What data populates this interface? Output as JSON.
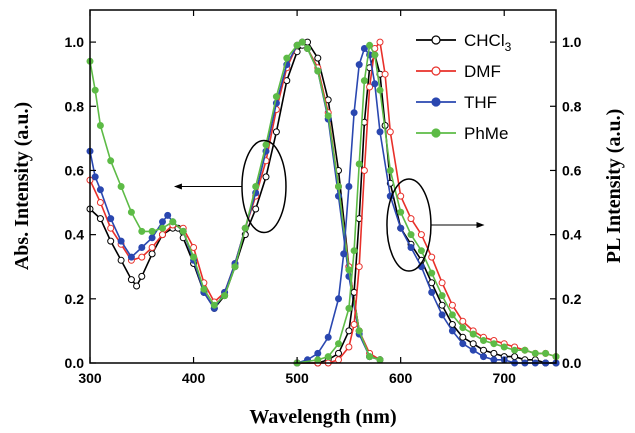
{
  "chart_data": {
    "type": "line",
    "xlabel": "Wavelength (nm)",
    "ylabel_left": "Abs. Intensity (a.u.)",
    "ylabel_right": "PL Intensity (a.u.)",
    "xlim": [
      300,
      750
    ],
    "ylim_left": [
      0.0,
      1.1
    ],
    "ylim_right": [
      0.0,
      1.1
    ],
    "x_ticks": [
      300,
      400,
      500,
      600,
      700
    ],
    "y_ticks": [
      "0.0",
      "0.2",
      "0.4",
      "0.6",
      "0.8",
      "1.0"
    ],
    "y_tick_values": [
      0.0,
      0.2,
      0.4,
      0.6,
      0.8,
      1.0
    ],
    "legend_position": "top-right",
    "legend": [
      {
        "main": "CHCl",
        "sub": "3",
        "color": "#000000",
        "marker": "open"
      },
      {
        "main": "DMF",
        "sub": "",
        "color": "#e8302a",
        "marker": "open"
      },
      {
        "main": "THF",
        "sub": "",
        "color": "#2a47b0",
        "marker": "filled"
      },
      {
        "main": "PhMe",
        "sub": "",
        "color": "#5dbb46",
        "marker": "filled"
      }
    ],
    "annotations": [
      {
        "type": "ellipse",
        "center": [
          468,
          0.55
        ],
        "axis": "left",
        "arrow_to": 382,
        "arrow_direction": "left"
      },
      {
        "type": "ellipse",
        "center": [
          608,
          0.43
        ],
        "axis": "right",
        "arrow_to": 680,
        "arrow_direction": "right"
      }
    ],
    "series": [
      {
        "color": "#000000",
        "marker": "open",
        "kind": "absorption",
        "x": [
          300,
          310,
          320,
          330,
          340,
          345,
          350,
          360,
          370,
          380,
          385,
          390,
          400,
          410,
          420,
          430,
          440,
          450,
          460,
          470,
          480,
          490,
          500,
          505,
          510,
          520,
          530,
          540,
          550,
          560,
          570,
          580
        ],
        "y": [
          0.48,
          0.45,
          0.38,
          0.32,
          0.26,
          0.24,
          0.27,
          0.34,
          0.4,
          0.42,
          0.42,
          0.39,
          0.31,
          0.22,
          0.17,
          0.21,
          0.3,
          0.4,
          0.48,
          0.58,
          0.72,
          0.88,
          0.97,
          0.99,
          1.0,
          0.95,
          0.82,
          0.6,
          0.3,
          0.1,
          0.02,
          0.01
        ]
      },
      {
        "color": "#e8302a",
        "marker": "open",
        "kind": "absorption",
        "x": [
          300,
          310,
          320,
          330,
          340,
          350,
          360,
          370,
          380,
          390,
          400,
          410,
          420,
          430,
          440,
          450,
          460,
          470,
          480,
          490,
          500,
          505,
          510,
          520,
          530,
          540,
          550,
          560,
          570,
          580
        ],
        "y": [
          0.57,
          0.5,
          0.42,
          0.37,
          0.32,
          0.33,
          0.36,
          0.4,
          0.43,
          0.42,
          0.36,
          0.25,
          0.19,
          0.22,
          0.31,
          0.42,
          0.52,
          0.63,
          0.79,
          0.92,
          0.99,
          1.0,
          0.98,
          0.92,
          0.78,
          0.55,
          0.3,
          0.1,
          0.03,
          0.01
        ]
      },
      {
        "color": "#2a47b0",
        "marker": "filled",
        "kind": "absorption",
        "x": [
          300,
          305,
          310,
          320,
          330,
          340,
          350,
          360,
          370,
          375,
          380,
          390,
          400,
          410,
          420,
          430,
          440,
          450,
          460,
          470,
          480,
          490,
          500,
          505,
          510,
          520,
          530,
          540,
          550,
          560,
          570,
          580
        ],
        "y": [
          0.66,
          0.58,
          0.54,
          0.45,
          0.38,
          0.33,
          0.36,
          0.39,
          0.44,
          0.46,
          0.44,
          0.41,
          0.32,
          0.22,
          0.17,
          0.22,
          0.31,
          0.42,
          0.53,
          0.66,
          0.81,
          0.93,
          0.99,
          1.0,
          0.98,
          0.91,
          0.76,
          0.52,
          0.27,
          0.09,
          0.02,
          0.01
        ]
      },
      {
        "color": "#5dbb46",
        "marker": "filled",
        "kind": "absorption",
        "x": [
          300,
          305,
          310,
          320,
          330,
          340,
          350,
          360,
          370,
          380,
          390,
          400,
          410,
          420,
          430,
          440,
          450,
          460,
          470,
          480,
          490,
          500,
          505,
          510,
          520,
          530,
          540,
          550,
          560,
          570,
          580
        ],
        "y": [
          0.94,
          0.85,
          0.74,
          0.63,
          0.55,
          0.47,
          0.41,
          0.41,
          0.42,
          0.44,
          0.41,
          0.33,
          0.23,
          0.18,
          0.21,
          0.3,
          0.42,
          0.55,
          0.68,
          0.83,
          0.95,
          0.99,
          1.0,
          0.98,
          0.91,
          0.77,
          0.55,
          0.29,
          0.1,
          0.02,
          0.01
        ]
      },
      {
        "color": "#000000",
        "marker": "open",
        "kind": "emission",
        "x": [
          500,
          520,
          530,
          540,
          550,
          555,
          560,
          565,
          570,
          575,
          580,
          585,
          590,
          600,
          610,
          620,
          630,
          640,
          650,
          660,
          670,
          680,
          690,
          700,
          710,
          720,
          730,
          740,
          750
        ],
        "y": [
          0.0,
          0.0,
          0.01,
          0.03,
          0.1,
          0.22,
          0.45,
          0.75,
          0.92,
          0.96,
          0.9,
          0.74,
          0.56,
          0.42,
          0.37,
          0.32,
          0.25,
          0.18,
          0.12,
          0.08,
          0.06,
          0.04,
          0.03,
          0.02,
          0.02,
          0.01,
          0.01,
          0.0,
          0.0
        ]
      },
      {
        "color": "#e8302a",
        "marker": "open",
        "kind": "emission",
        "x": [
          500,
          520,
          530,
          540,
          550,
          555,
          560,
          565,
          570,
          575,
          580,
          585,
          590,
          600,
          610,
          620,
          630,
          640,
          650,
          660,
          670,
          680,
          690,
          700,
          710,
          720,
          730,
          740,
          750
        ],
        "y": [
          0.0,
          0.0,
          0.0,
          0.01,
          0.05,
          0.12,
          0.3,
          0.6,
          0.86,
          0.98,
          1.0,
          0.9,
          0.72,
          0.52,
          0.45,
          0.4,
          0.33,
          0.25,
          0.18,
          0.13,
          0.1,
          0.08,
          0.07,
          0.06,
          0.05,
          0.04,
          0.03,
          0.03,
          0.02
        ]
      },
      {
        "color": "#2a47b0",
        "marker": "filled",
        "kind": "emission",
        "x": [
          500,
          510,
          520,
          530,
          540,
          545,
          550,
          555,
          560,
          565,
          570,
          575,
          580,
          590,
          600,
          610,
          620,
          630,
          640,
          650,
          660,
          670,
          680,
          690,
          700,
          710,
          720,
          730,
          740,
          750
        ],
        "y": [
          0.0,
          0.01,
          0.03,
          0.08,
          0.2,
          0.34,
          0.55,
          0.78,
          0.93,
          0.98,
          0.96,
          0.87,
          0.72,
          0.52,
          0.42,
          0.36,
          0.3,
          0.22,
          0.15,
          0.1,
          0.06,
          0.04,
          0.02,
          0.01,
          0.01,
          0.0,
          0.0,
          0.0,
          0.0,
          0.0
        ]
      },
      {
        "color": "#5dbb46",
        "marker": "filled",
        "kind": "emission",
        "x": [
          500,
          520,
          530,
          540,
          550,
          555,
          560,
          565,
          570,
          575,
          580,
          590,
          600,
          610,
          620,
          630,
          640,
          650,
          660,
          670,
          680,
          690,
          700,
          710,
          720,
          730,
          740,
          750
        ],
        "y": [
          0.0,
          0.01,
          0.02,
          0.06,
          0.17,
          0.35,
          0.62,
          0.88,
          0.99,
          0.96,
          0.85,
          0.6,
          0.47,
          0.4,
          0.35,
          0.28,
          0.21,
          0.15,
          0.11,
          0.09,
          0.07,
          0.06,
          0.05,
          0.04,
          0.04,
          0.03,
          0.03,
          0.02
        ]
      }
    ]
  }
}
